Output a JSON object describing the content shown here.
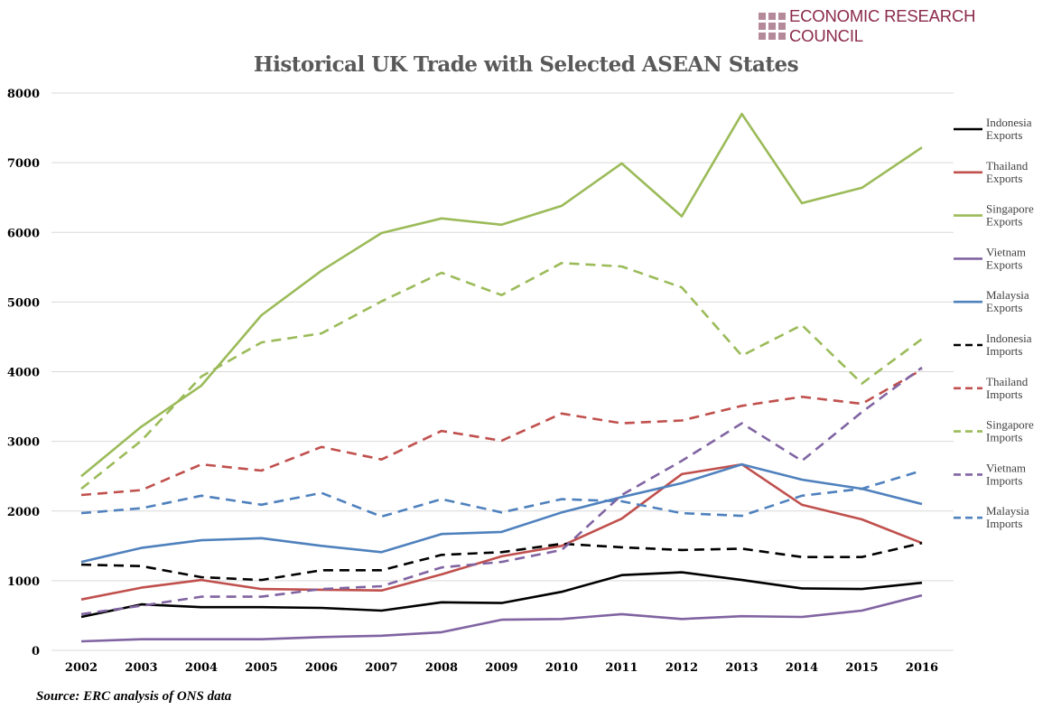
{
  "logo": {
    "text": "ECONOMIC RESEARCH COUNCIL",
    "color": "#8b2a4c"
  },
  "chart_data": {
    "type": "line",
    "title": "Historical UK Trade with Selected ASEAN States",
    "source": "Source: ERC analysis of ONS data",
    "xlabel": "",
    "ylabel": "",
    "categories": [
      "2002",
      "2003",
      "2004",
      "2005",
      "2006",
      "2007",
      "2008",
      "2009",
      "2010",
      "2011",
      "2012",
      "2013",
      "2014",
      "2015",
      "2016"
    ],
    "ylim": [
      0,
      8000
    ],
    "yticks": [
      "0",
      "1000",
      "2000",
      "3000",
      "4000",
      "5000",
      "6000",
      "7000",
      "8000"
    ],
    "grid": true,
    "legend_position": "right",
    "series": [
      {
        "name": "Indonesia Exports",
        "color": "#000000",
        "dashed": false,
        "values": [
          480,
          660,
          620,
          620,
          610,
          570,
          690,
          680,
          840,
          1080,
          1120,
          1010,
          890,
          880,
          970
        ]
      },
      {
        "name": "Thailand Exports",
        "color": "#c0504d",
        "dashed": false,
        "values": [
          730,
          900,
          1010,
          880,
          870,
          860,
          1090,
          1350,
          1500,
          1890,
          2530,
          2670,
          2090,
          1880,
          1540
        ]
      },
      {
        "name": "Singapore Exports",
        "color": "#9bbb59",
        "dashed": false,
        "values": [
          2500,
          3210,
          3800,
          4810,
          5450,
          5990,
          6200,
          6110,
          6380,
          6990,
          6230,
          7700,
          6420,
          6640,
          7220
        ]
      },
      {
        "name": "Vietnam Exports",
        "color": "#8064a2",
        "dashed": false,
        "values": [
          130,
          160,
          160,
          160,
          190,
          210,
          260,
          440,
          450,
          520,
          450,
          490,
          480,
          570,
          790
        ]
      },
      {
        "name": "Malaysia Exports",
        "color": "#4f81bd",
        "dashed": false,
        "values": [
          1270,
          1470,
          1580,
          1610,
          1500,
          1410,
          1670,
          1700,
          1980,
          2200,
          2400,
          2670,
          2450,
          2320,
          2100
        ]
      },
      {
        "name": "Indonesia Imports",
        "color": "#000000",
        "dashed": true,
        "values": [
          1230,
          1210,
          1050,
          1010,
          1150,
          1150,
          1370,
          1410,
          1530,
          1480,
          1440,
          1460,
          1340,
          1340,
          1540
        ]
      },
      {
        "name": "Thailand Imports",
        "color": "#c0504d",
        "dashed": true,
        "values": [
          2230,
          2300,
          2670,
          2580,
          2920,
          2740,
          3150,
          3010,
          3400,
          3260,
          3300,
          3510,
          3640,
          3540,
          4030
        ]
      },
      {
        "name": "Singapore Imports",
        "color": "#9bbb59",
        "dashed": true,
        "values": [
          2320,
          3010,
          3930,
          4420,
          4550,
          5010,
          5420,
          5100,
          5560,
          5510,
          5210,
          4230,
          4670,
          3830,
          4470
        ]
      },
      {
        "name": "Vietnam Imports",
        "color": "#8064a2",
        "dashed": true,
        "values": [
          520,
          640,
          770,
          770,
          880,
          920,
          1190,
          1270,
          1440,
          2230,
          2720,
          3260,
          2720,
          3420,
          4060
        ]
      },
      {
        "name": "Malaysia Imports",
        "color": "#4f81bd",
        "dashed": true,
        "values": [
          1970,
          2040,
          2220,
          2090,
          2260,
          1920,
          2170,
          1980,
          2170,
          2140,
          1970,
          1930,
          2220,
          2320,
          2580
        ]
      }
    ]
  }
}
